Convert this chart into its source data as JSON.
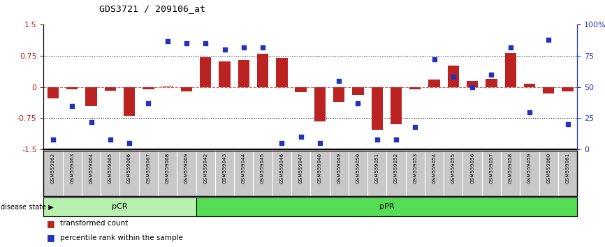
{
  "title": "GDS3721 / 209106_at",
  "samples": [
    "GSM559062",
    "GSM559063",
    "GSM559064",
    "GSM559065",
    "GSM559066",
    "GSM559067",
    "GSM559068",
    "GSM559069",
    "GSM559042",
    "GSM559043",
    "GSM559044",
    "GSM559045",
    "GSM559046",
    "GSM559047",
    "GSM559048",
    "GSM559049",
    "GSM559050",
    "GSM559051",
    "GSM559052",
    "GSM559053",
    "GSM559054",
    "GSM559055",
    "GSM559056",
    "GSM559057",
    "GSM559058",
    "GSM559059",
    "GSM559060",
    "GSM559061"
  ],
  "bar_values": [
    -0.28,
    -0.05,
    -0.45,
    -0.08,
    -0.7,
    -0.05,
    0.02,
    -0.1,
    0.72,
    0.62,
    0.65,
    0.8,
    0.7,
    -0.12,
    -0.82,
    -0.35,
    -0.18,
    -1.02,
    -0.9,
    -0.05,
    0.18,
    0.52,
    0.15,
    0.2,
    0.82,
    0.08,
    -0.15,
    -0.1
  ],
  "percentile_values": [
    8,
    35,
    22,
    8,
    5,
    37,
    87,
    85,
    85,
    80,
    82,
    82,
    5,
    10,
    5,
    55,
    37,
    8,
    8,
    18,
    72,
    58,
    50,
    60,
    82,
    30,
    88,
    20
  ],
  "pCR_count": 8,
  "ylim": [
    -1.5,
    1.5
  ],
  "yticks_left": [
    -1.5,
    -0.75,
    0,
    0.75,
    1.5
  ],
  "ytick_labels_left": [
    "-1.5",
    "-0.75",
    "0",
    "0.75",
    "1.5"
  ],
  "yticks_right_pct": [
    0,
    25,
    50,
    75,
    100
  ],
  "ytick_labels_right": [
    "0",
    "25",
    "50",
    "75",
    "100%"
  ],
  "bar_color": "#bb2222",
  "dot_color": "#2233bb",
  "pCR_facecolor": "#b8f0b0",
  "pPR_facecolor": "#55dd55",
  "label_bg_color": "#c8c8c8",
  "legend_bar": "transformed count",
  "legend_dot": "percentile rank within the sample"
}
